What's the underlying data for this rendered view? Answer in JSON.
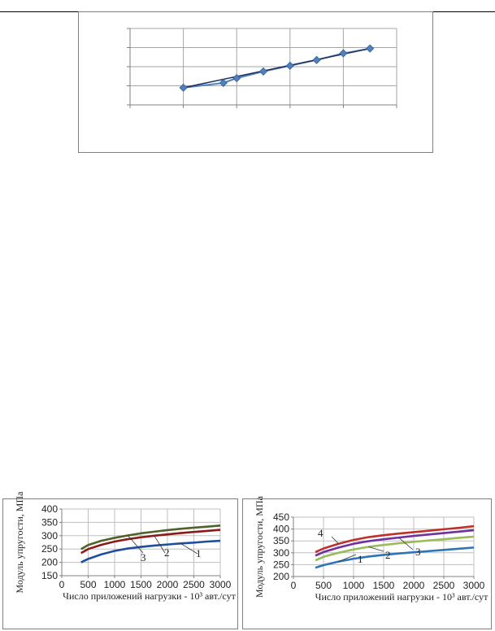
{
  "chart_data": [
    {
      "type": "line",
      "title": "",
      "xlabel": "",
      "ylabel": "",
      "xlim": [
        0,
        10
      ],
      "ylim": [
        0,
        4
      ],
      "grid": true,
      "tick_labels_visible": false,
      "series": [
        {
          "color": "#4f81bd",
          "marker": "diamond",
          "x": [
            2.0,
            3.5,
            4.0,
            5.0,
            6.0,
            7.0,
            8.0,
            9.0
          ],
          "y": [
            0.9,
            1.15,
            1.4,
            1.75,
            2.05,
            2.35,
            2.7,
            2.95
          ]
        }
      ],
      "trendline": {
        "color": "#1f2d5a",
        "x": [
          2.0,
          9.0
        ],
        "y": [
          0.9,
          2.95
        ]
      }
    },
    {
      "type": "line",
      "title": "",
      "xlabel": "Число приложений нагрузки - 10³ авт./сут",
      "ylabel": "Модуль упругости, МПа",
      "xlim": [
        0,
        3000
      ],
      "ylim": [
        150,
        400
      ],
      "xticks": [
        0,
        500,
        1000,
        1500,
        2000,
        2500,
        3000
      ],
      "yticks": [
        150,
        200,
        250,
        300,
        350,
        400
      ],
      "grid": true,
      "series": [
        {
          "label": "1",
          "color": "#1f4e9c",
          "x": [
            365,
            500,
            750,
            1000,
            1250,
            1500,
            1750,
            2000,
            2250,
            2500,
            2750,
            3000
          ],
          "y": [
            200,
            213,
            230,
            243,
            252,
            258,
            263,
            267,
            271,
            274,
            278,
            281
          ]
        },
        {
          "label": "2",
          "color": "#8b1a1a",
          "x": [
            365,
            500,
            750,
            1000,
            1250,
            1500,
            1750,
            2000,
            2250,
            2500,
            2750,
            3000
          ],
          "y": [
            235,
            250,
            266,
            278,
            287,
            294,
            300,
            305,
            310,
            314,
            318,
            322
          ]
        },
        {
          "label": "3",
          "color": "#4f6228",
          "x": [
            365,
            500,
            750,
            1000,
            1250,
            1500,
            1750,
            2000,
            2250,
            2500,
            2750,
            3000
          ],
          "y": [
            250,
            265,
            281,
            292,
            301,
            309,
            315,
            321,
            326,
            330,
            334,
            338
          ]
        }
      ],
      "annotations": [
        {
          "text": "1",
          "series": "1"
        },
        {
          "text": "2",
          "series": "2"
        },
        {
          "text": "3",
          "series": "3"
        }
      ]
    },
    {
      "type": "line",
      "title": "",
      "xlabel": "Число приложений нагрузки - 10³ авт./сут",
      "ylabel": "Модуль упругости, МПа",
      "xlim": [
        0,
        3000
      ],
      "ylim": [
        200,
        450
      ],
      "xticks": [
        0,
        500,
        1000,
        1500,
        2000,
        2500,
        3000
      ],
      "yticks": [
        200,
        250,
        300,
        350,
        400,
        450
      ],
      "grid": true,
      "series": [
        {
          "label": "1",
          "color": "#2e75b6",
          "x": [
            365,
            500,
            750,
            1000,
            1250,
            1500,
            1750,
            2000,
            2250,
            2500,
            2750,
            3000
          ],
          "y": [
            237,
            248,
            263,
            275,
            284,
            291,
            297,
            302,
            307,
            312,
            317,
            322
          ]
        },
        {
          "label": "2",
          "color": "#9bbb59",
          "x": [
            365,
            500,
            750,
            1000,
            1250,
            1500,
            1750,
            2000,
            2250,
            2500,
            2750,
            3000
          ],
          "y": [
            268,
            283,
            300,
            314,
            325,
            333,
            340,
            346,
            352,
            357,
            363,
            368
          ]
        },
        {
          "label": "3",
          "color": "#7030a0",
          "x": [
            365,
            500,
            750,
            1000,
            1250,
            1500,
            1750,
            2000,
            2250,
            2500,
            2750,
            3000
          ],
          "y": [
            288,
            303,
            322,
            338,
            349,
            357,
            364,
            371,
            377,
            383,
            389,
            395
          ]
        },
        {
          "label": "4",
          "color": "#c0302a",
          "x": [
            365,
            500,
            750,
            1000,
            1250,
            1500,
            1750,
            2000,
            2250,
            2500,
            2750,
            3000
          ],
          "y": [
            303,
            318,
            338,
            354,
            366,
            374,
            381,
            387,
            393,
            399,
            405,
            412
          ]
        }
      ],
      "annotations": [
        {
          "text": "1",
          "series": "1"
        },
        {
          "text": "2",
          "series": "2"
        },
        {
          "text": "3",
          "series": "3"
        },
        {
          "text": "4",
          "series": "4"
        }
      ]
    }
  ]
}
